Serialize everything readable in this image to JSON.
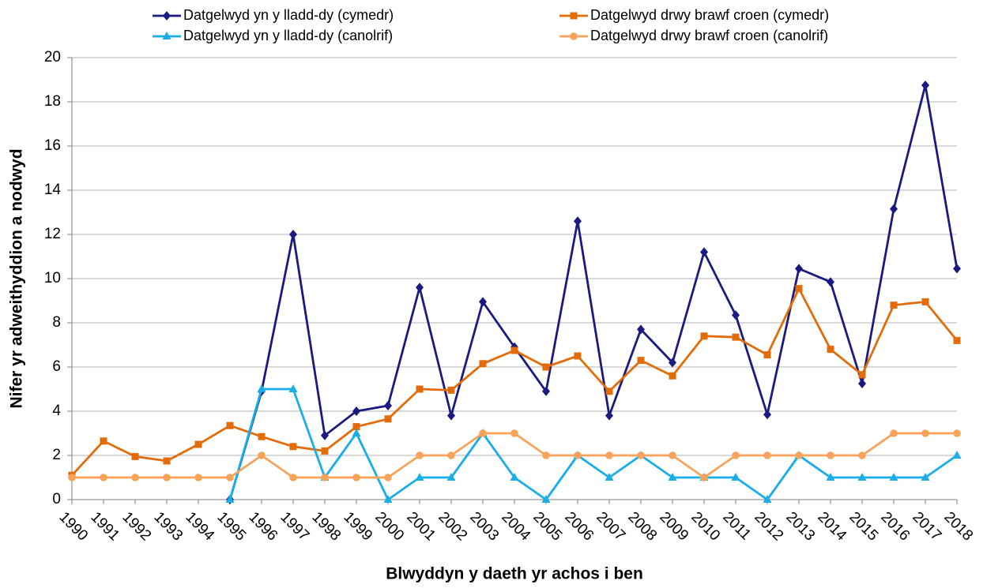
{
  "chart_data": {
    "type": "line",
    "x_label": "Blwyddyn y daeth yr achos i ben",
    "y_label": "Nifer yr adweithyddion a nodwyd",
    "categories": [
      "1990",
      "1991",
      "1992",
      "1993",
      "1994",
      "1995",
      "1996",
      "1997",
      "1998",
      "1999",
      "2000",
      "2001",
      "2002",
      "2003",
      "2004",
      "2005",
      "2006",
      "2007",
      "2008",
      "2009",
      "2010",
      "2011",
      "2012",
      "2013",
      "2014",
      "2015",
      "2016",
      "2017",
      "2018"
    ],
    "series": [
      {
        "name": "Datgelwyd yn y lladd-dy (cymedr)",
        "color": "#1a1a80",
        "marker": "diamond",
        "values": [
          null,
          null,
          null,
          null,
          null,
          0,
          4.9,
          12,
          2.9,
          4,
          4.25,
          9.6,
          3.8,
          8.95,
          6.9,
          4.9,
          12.6,
          3.8,
          7.7,
          6.2,
          11.2,
          8.35,
          3.85,
          10.45,
          9.85,
          5.25,
          13.15,
          18.75,
          10.45
        ]
      },
      {
        "name": "Datgelwyd drwy brawf croen (cymedr)",
        "color": "#e36c0a",
        "marker": "square",
        "values": [
          1.1,
          2.65,
          1.95,
          1.75,
          2.5,
          3.35,
          2.85,
          2.4,
          2.2,
          3.3,
          3.65,
          5,
          4.95,
          6.15,
          6.75,
          6,
          6.5,
          4.9,
          6.3,
          5.6,
          7.4,
          7.35,
          6.55,
          9.55,
          6.8,
          5.65,
          8.8,
          8.95,
          7.2
        ]
      },
      {
        "name": "Datgelwyd yn y lladd-dy (canolrif)",
        "color": "#1aaee8",
        "marker": "triangle",
        "values": [
          null,
          null,
          null,
          null,
          null,
          0,
          5,
          5,
          1,
          3,
          0,
          1,
          1,
          3,
          1,
          0,
          2,
          1,
          2,
          1,
          1,
          1,
          0,
          2,
          1,
          1,
          1,
          1,
          2
        ]
      },
      {
        "name": "Datgelwyd drwy brawf croen (canolrif)",
        "color": "#f9a35a",
        "marker": "circle",
        "values": [
          1,
          1,
          1,
          1,
          1,
          1,
          2,
          1,
          1,
          1,
          1,
          2,
          2,
          3,
          3,
          2,
          2,
          2,
          2,
          2,
          1,
          2,
          2,
          2,
          2,
          2,
          3,
          3,
          3
        ]
      }
    ],
    "ylim": [
      0,
      20
    ],
    "yticks": [
      0,
      2,
      4,
      6,
      8,
      10,
      12,
      14,
      16,
      18,
      20
    ],
    "grid": true,
    "legend": "top"
  }
}
